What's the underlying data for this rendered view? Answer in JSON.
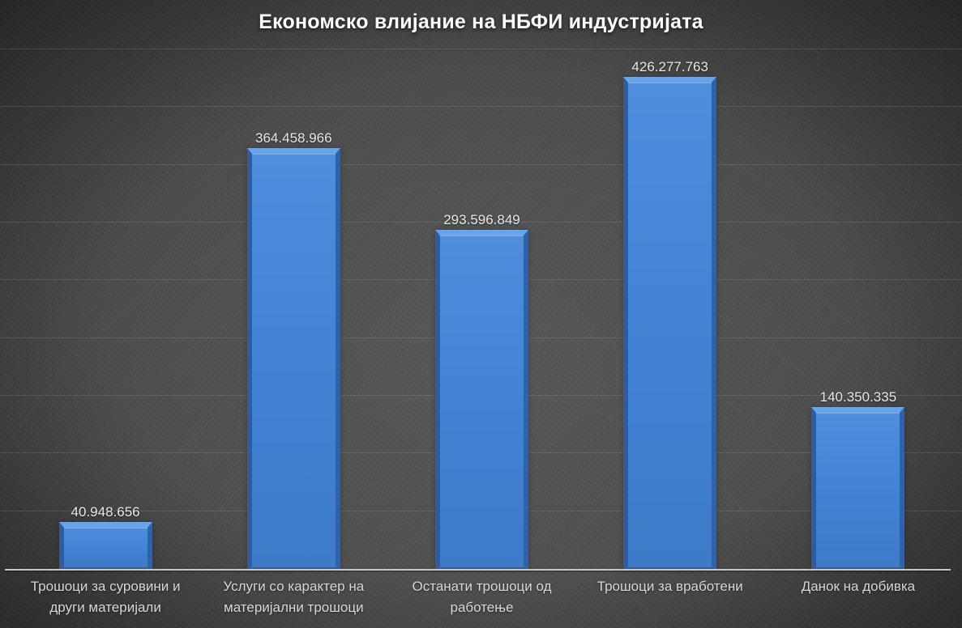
{
  "slide": {
    "title": "Економско влијание на НБФИ индустријата"
  },
  "chart_data": {
    "type": "bar",
    "title": "Економско влијание на НБФИ индустријата",
    "categories": [
      "Трошоци за суровини и други материјали",
      "Услуги со карактер на материјални трошоци",
      "Останати трошоци од работење",
      "Трошоци за вработени",
      "Данок на добивка"
    ],
    "category_lines": [
      [
        "Трошоци за суровини и",
        "други материјали"
      ],
      [
        "Услуги со карактер на",
        "материјални трошоци"
      ],
      [
        "Останати трошоци од",
        "работење"
      ],
      [
        "Трошоци за вработени"
      ],
      [
        "Данок на добивка"
      ]
    ],
    "values": [
      40948656,
      364458966,
      293596849,
      426277763,
      140350335
    ],
    "value_labels": [
      "40.948.656",
      "364.458.966",
      "293.596.849",
      "426.277.763",
      "140.350.335"
    ],
    "xlabel": "",
    "ylabel": "",
    "ylim": [
      0,
      450000000
    ],
    "gridline_step": 50000000,
    "grid": "horizontal",
    "legend": "none",
    "colors": {
      "background": "#2e2e2e",
      "bar_body": "#4384d6",
      "bar_highlight": "#6aa4e7",
      "bar_edge": "#2a5da6",
      "gridline": "#3f3f3f",
      "axis_line": "#c7c7c7",
      "title_text": "#fdfdfd",
      "value_text": "#e9e7e4",
      "category_text": "#d9d7d4"
    }
  }
}
